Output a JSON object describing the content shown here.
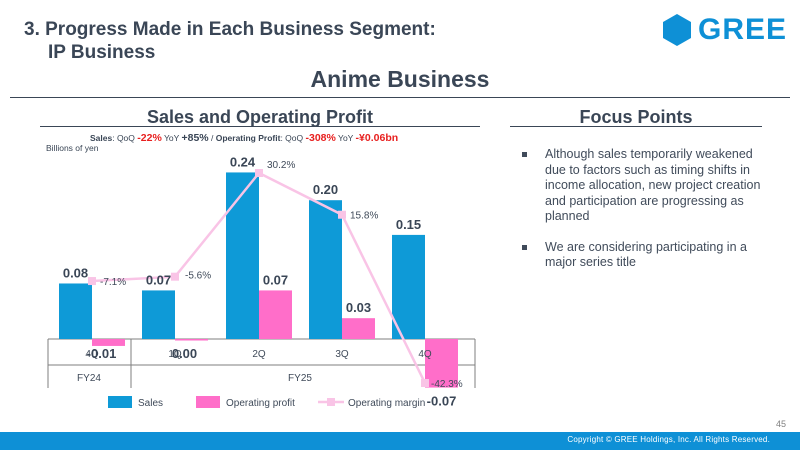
{
  "header": {
    "title_line1": "3. Progress Made in Each Business Segment:",
    "title_line2": "IP Business",
    "logo_text": "GREE"
  },
  "main_title": "Anime Business",
  "left_section": {
    "title": "Sales and Operating Profit",
    "summary": {
      "sales_label": "Sales",
      "qoq_label1": ": QoQ ",
      "sales_qoq": "-22%",
      "yoy_label1": " YoY ",
      "sales_yoy": "+85%",
      "sep": " / ",
      "op_label": "Operating Profit",
      "qoq_label2": ": QoQ ",
      "op_qoq": "-308%",
      "yoy_label2": " YoY ",
      "op_yoy": "-¥0.06bn"
    },
    "unit": "Billions of yen"
  },
  "right_section": {
    "title": "Focus Points",
    "bullets": [
      "Although sales temporarily weakened due to factors such as timing shifts in income allocation, new project creation and participation are progressing as planned",
      "We are considering participating in a major series title"
    ]
  },
  "chart_data": {
    "type": "bar",
    "categories": [
      "4Q",
      "1Q",
      "2Q",
      "3Q",
      "4Q"
    ],
    "fiscal_groups": [
      {
        "label": "FY24",
        "span": [
          0,
          0
        ]
      },
      {
        "label": "FY25",
        "span": [
          1,
          4
        ]
      }
    ],
    "series": [
      {
        "name": "Sales",
        "type": "bar",
        "color": "#0e9ad7",
        "values": [
          0.08,
          0.07,
          0.24,
          0.2,
          0.15
        ],
        "labels": [
          "0.08",
          "0.07",
          "0.24",
          "0.20",
          "0.15"
        ]
      },
      {
        "name": "Operating profit",
        "type": "bar",
        "color": "#ff6ec9",
        "values": [
          -0.01,
          -0.002,
          0.07,
          0.03,
          -0.07
        ],
        "labels": [
          "-0.01",
          "0.00",
          "0.07",
          "0.03",
          "-0.07"
        ]
      },
      {
        "name": "Operating margin",
        "type": "line",
        "color": "#f9c4e6",
        "values": [
          -7.1,
          -5.6,
          30.2,
          15.8,
          -42.3
        ],
        "labels": [
          "-7.1%",
          "-5.6%",
          "30.2%",
          "15.8%",
          "-42.3%"
        ]
      }
    ],
    "ylim": [
      -0.07,
      0.26
    ],
    "margin_ylim": [
      -50,
      35
    ],
    "legend_position": "bottom"
  },
  "page_number": "45",
  "footer": {
    "copyright": "Copyright © GREE Holdings, Inc. All Rights Reserved."
  }
}
